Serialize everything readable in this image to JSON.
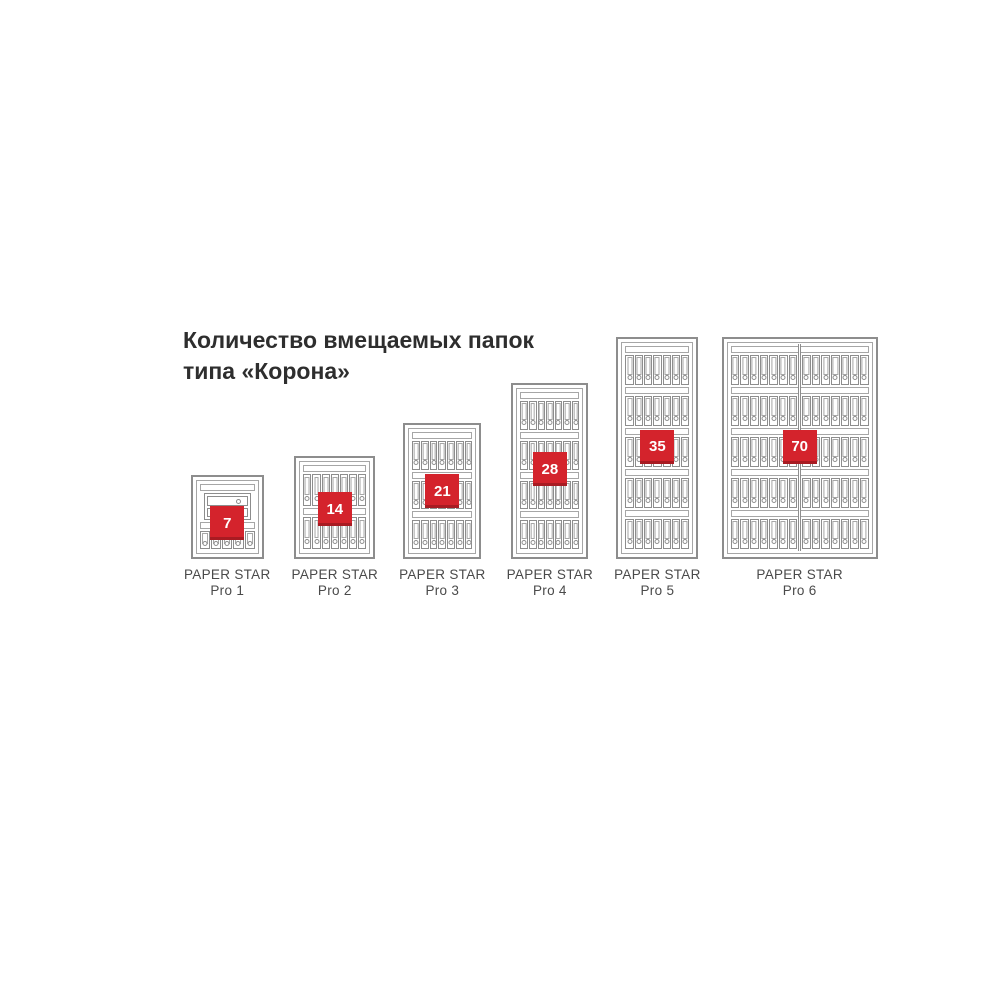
{
  "title": {
    "line1": "Количество вмещаемых папок",
    "line2": "типа «Корона»"
  },
  "figure": {
    "folder_type": "Корона",
    "safes": [
      {
        "model": "PAPER STAR",
        "variant": "Pro 1",
        "capacity": "7",
        "rows": 1,
        "binders_per_row": 5,
        "drawers": 2,
        "double_door": false
      },
      {
        "model": "PAPER STAR",
        "variant": "Pro 2",
        "capacity": "14",
        "rows": 2,
        "binders_per_row": 7,
        "drawers": 0,
        "double_door": false
      },
      {
        "model": "PAPER STAR",
        "variant": "Pro 3",
        "capacity": "21",
        "rows": 3,
        "binders_per_row": 7,
        "drawers": 0,
        "double_door": false
      },
      {
        "model": "PAPER STAR",
        "variant": "Pro 4",
        "capacity": "28",
        "rows": 4,
        "binders_per_row": 7,
        "drawers": 0,
        "double_door": false
      },
      {
        "model": "PAPER STAR",
        "variant": "Pro 5",
        "capacity": "35",
        "rows": 5,
        "binders_per_row": 7,
        "drawers": 0,
        "double_door": false
      },
      {
        "model": "PAPER STAR",
        "variant": "Pro 6",
        "capacity": "70",
        "rows": 5,
        "binders_per_row": 14,
        "drawers": 0,
        "double_door": true
      }
    ],
    "colors": {
      "badge": "#d4232c",
      "badge_edge": "#a81b22",
      "badge_text": "#ffffff",
      "line": "#8d8d8d",
      "line_light": "#a6a6a6",
      "label_text": "#4a4a4a",
      "title_text": "#2e2e2e"
    }
  }
}
